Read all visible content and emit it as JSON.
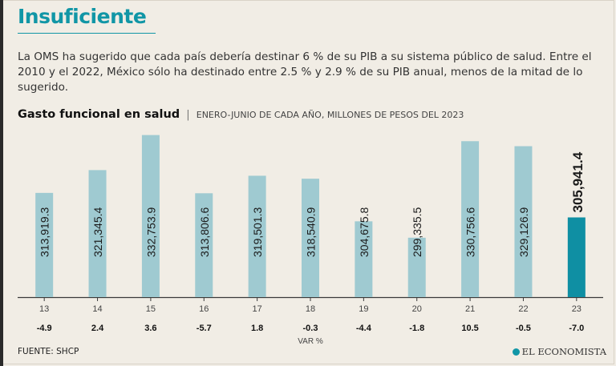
{
  "headline": "Insuficiente",
  "intro": "La OMS ha sugerido que cada país debería destinar 6 % de su PIB a su sistema público de salud. Entre el 2010 y el 2022, México sólo ha destinado entre 2.5 % y 2.9 % de su PIB anual, menos de la mitad de lo sugerido.",
  "chart_title": "Gasto funcional en salud",
  "chart_separator": "|",
  "chart_subtitle": "ENERO-JUNIO DE CADA AÑO, MILLONES DE PESOS DEL 2023",
  "source": "FUENTE: SHCP",
  "logo": "EL ECONOMISTA",
  "colors": {
    "accent": "#1196a6",
    "bar": "#9fcad1",
    "bar_highlight": "#0f8fa3",
    "background": "#f1ede5"
  },
  "chart_data": {
    "type": "bar",
    "title": "Gasto funcional en salud",
    "subtitle": "ENERO-JUNIO DE CADA AÑO, MILLONES DE PESOS DEL 2023",
    "categories": [
      "13",
      "14",
      "15",
      "16",
      "17",
      "18",
      "19",
      "20",
      "21",
      "22",
      "23"
    ],
    "values": [
      313919.3,
      321345.4,
      332753.9,
      313806.6,
      319501.3,
      318540.9,
      304675.8,
      299335.5,
      330756.6,
      329126.9,
      305941.4
    ],
    "value_labels": [
      "313,919.3",
      "321,345.4",
      "332,753.9",
      "313,806.6",
      "319,501.3",
      "318,540.9",
      "304,675.8",
      "299,335.5",
      "330,756.6",
      "329,126.9",
      "305,941.4"
    ],
    "var_labels": [
      "-4.9",
      "2.4",
      "3.6",
      "-5.7",
      "1.8",
      "-0.3",
      "-4.4",
      "-1.8",
      "10.5",
      "-0.5",
      "-7.0"
    ],
    "var_label": "VAR %",
    "highlight_index": 10,
    "ylim": [
      280000,
      335000
    ],
    "xlabel": "",
    "ylabel": ""
  }
}
